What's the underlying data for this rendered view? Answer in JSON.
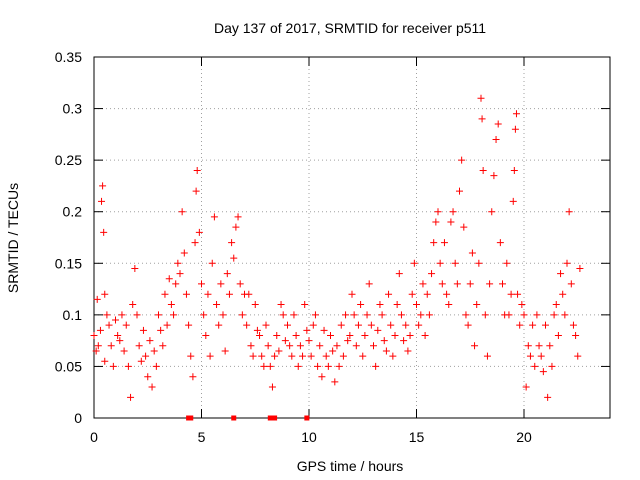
{
  "chart_data": {
    "type": "scatter",
    "title": "Day 137 of 2017, SRMTID for receiver p511",
    "xlabel": "GPS time / hours",
    "ylabel": "SRMTID / TECUs",
    "xlim": [
      0,
      24
    ],
    "ylim": [
      0,
      0.35
    ],
    "xticks": [
      0,
      5,
      10,
      15,
      20
    ],
    "yticks": [
      0,
      0.05,
      0.1,
      0.15,
      0.2,
      0.25,
      0.3,
      0.35
    ],
    "grid": true,
    "series_color": "#ff0000",
    "series": [
      {
        "name": "SRMTID",
        "marker": "+",
        "points": [
          [
            0.0,
            0.08
          ],
          [
            0.1,
            0.065
          ],
          [
            0.15,
            0.115
          ],
          [
            0.2,
            0.07
          ],
          [
            0.3,
            0.085
          ],
          [
            0.35,
            0.21
          ],
          [
            0.4,
            0.225
          ],
          [
            0.45,
            0.18
          ],
          [
            0.5,
            0.12
          ],
          [
            0.5,
            0.055
          ],
          [
            0.6,
            0.1
          ],
          [
            0.7,
            0.09
          ],
          [
            0.8,
            0.07
          ],
          [
            0.9,
            0.05
          ],
          [
            1.0,
            0.095
          ],
          [
            1.1,
            0.08
          ],
          [
            1.2,
            0.075
          ],
          [
            1.3,
            0.1
          ],
          [
            1.4,
            0.065
          ],
          [
            1.5,
            0.09
          ],
          [
            1.6,
            0.05
          ],
          [
            1.7,
            0.02
          ],
          [
            1.8,
            0.11
          ],
          [
            1.9,
            0.145
          ],
          [
            2.0,
            0.1
          ],
          [
            2.1,
            0.07
          ],
          [
            2.2,
            0.055
          ],
          [
            2.3,
            0.085
          ],
          [
            2.4,
            0.06
          ],
          [
            2.5,
            0.04
          ],
          [
            2.6,
            0.075
          ],
          [
            2.7,
            0.03
          ],
          [
            2.8,
            0.065
          ],
          [
            2.9,
            0.05
          ],
          [
            3.0,
            0.1
          ],
          [
            3.1,
            0.085
          ],
          [
            3.2,
            0.07
          ],
          [
            3.3,
            0.12
          ],
          [
            3.4,
            0.09
          ],
          [
            3.5,
            0.135
          ],
          [
            3.6,
            0.11
          ],
          [
            3.7,
            0.1
          ],
          [
            3.8,
            0.13
          ],
          [
            3.9,
            0.15
          ],
          [
            4.0,
            0.14
          ],
          [
            4.1,
            0.2
          ],
          [
            4.2,
            0.16
          ],
          [
            4.3,
            0.12
          ],
          [
            4.4,
            0.09
          ],
          [
            4.5,
            0.06
          ],
          [
            4.6,
            0.04
          ],
          [
            4.7,
            0.17
          ],
          [
            4.75,
            0.22
          ],
          [
            4.8,
            0.24
          ],
          [
            4.9,
            0.18
          ],
          [
            5.0,
            0.13
          ],
          [
            5.1,
            0.1
          ],
          [
            5.2,
            0.08
          ],
          [
            5.3,
            0.12
          ],
          [
            5.4,
            0.06
          ],
          [
            5.5,
            0.15
          ],
          [
            5.6,
            0.195
          ],
          [
            5.7,
            0.11
          ],
          [
            5.8,
            0.09
          ],
          [
            5.9,
            0.13
          ],
          [
            6.0,
            0.1
          ],
          [
            6.1,
            0.065
          ],
          [
            6.2,
            0.14
          ],
          [
            6.3,
            0.12
          ],
          [
            6.4,
            0.17
          ],
          [
            6.5,
            0.155
          ],
          [
            6.6,
            0.185
          ],
          [
            6.7,
            0.195
          ],
          [
            6.8,
            0.13
          ],
          [
            6.9,
            0.1
          ],
          [
            7.0,
            0.12
          ],
          [
            7.1,
            0.09
          ],
          [
            7.2,
            0.12
          ],
          [
            7.3,
            0.07
          ],
          [
            7.4,
            0.06
          ],
          [
            7.5,
            0.11
          ],
          [
            7.6,
            0.085
          ],
          [
            7.7,
            0.08
          ],
          [
            7.8,
            0.06
          ],
          [
            7.9,
            0.05
          ],
          [
            8.0,
            0.09
          ],
          [
            8.1,
            0.07
          ],
          [
            8.2,
            0.05
          ],
          [
            8.3,
            0.03
          ],
          [
            8.4,
            0.06
          ],
          [
            8.5,
            0.08
          ],
          [
            8.6,
            0.065
          ],
          [
            8.7,
            0.11
          ],
          [
            8.8,
            0.1
          ],
          [
            8.9,
            0.075
          ],
          [
            9.0,
            0.09
          ],
          [
            9.1,
            0.07
          ],
          [
            9.2,
            0.06
          ],
          [
            9.3,
            0.1
          ],
          [
            9.4,
            0.08
          ],
          [
            9.5,
            0.05
          ],
          [
            9.6,
            0.07
          ],
          [
            9.7,
            0.06
          ],
          [
            9.8,
            0.11
          ],
          [
            9.9,
            0.085
          ],
          [
            10.0,
            0.075
          ],
          [
            10.1,
            0.06
          ],
          [
            10.2,
            0.09
          ],
          [
            10.3,
            0.1
          ],
          [
            10.4,
            0.05
          ],
          [
            10.5,
            0.07
          ],
          [
            10.6,
            0.04
          ],
          [
            10.7,
            0.085
          ],
          [
            10.8,
            0.06
          ],
          [
            10.9,
            0.05
          ],
          [
            11.0,
            0.08
          ],
          [
            11.1,
            0.065
          ],
          [
            11.2,
            0.035
          ],
          [
            11.3,
            0.07
          ],
          [
            11.4,
            0.05
          ],
          [
            11.5,
            0.09
          ],
          [
            11.6,
            0.06
          ],
          [
            11.7,
            0.1
          ],
          [
            11.8,
            0.075
          ],
          [
            11.9,
            0.08
          ],
          [
            12.0,
            0.12
          ],
          [
            12.1,
            0.1
          ],
          [
            12.2,
            0.07
          ],
          [
            12.3,
            0.09
          ],
          [
            12.4,
            0.11
          ],
          [
            12.5,
            0.06
          ],
          [
            12.6,
            0.08
          ],
          [
            12.7,
            0.1
          ],
          [
            12.8,
            0.13
          ],
          [
            12.9,
            0.09
          ],
          [
            13.0,
            0.07
          ],
          [
            13.1,
            0.05
          ],
          [
            13.2,
            0.085
          ],
          [
            13.3,
            0.11
          ],
          [
            13.4,
            0.1
          ],
          [
            13.5,
            0.075
          ],
          [
            13.6,
            0.065
          ],
          [
            13.7,
            0.12
          ],
          [
            13.8,
            0.09
          ],
          [
            13.9,
            0.06
          ],
          [
            14.0,
            0.08
          ],
          [
            14.1,
            0.11
          ],
          [
            14.2,
            0.14
          ],
          [
            14.3,
            0.1
          ],
          [
            14.4,
            0.075
          ],
          [
            14.5,
            0.09
          ],
          [
            14.6,
            0.065
          ],
          [
            14.7,
            0.08
          ],
          [
            14.8,
            0.12
          ],
          [
            14.9,
            0.15
          ],
          [
            15.0,
            0.11
          ],
          [
            15.1,
            0.09
          ],
          [
            15.2,
            0.1
          ],
          [
            15.3,
            0.13
          ],
          [
            15.4,
            0.08
          ],
          [
            15.5,
            0.12
          ],
          [
            15.6,
            0.1
          ],
          [
            15.7,
            0.14
          ],
          [
            15.8,
            0.17
          ],
          [
            15.9,
            0.19
          ],
          [
            16.0,
            0.2
          ],
          [
            16.1,
            0.15
          ],
          [
            16.2,
            0.13
          ],
          [
            16.3,
            0.17
          ],
          [
            16.4,
            0.12
          ],
          [
            16.5,
            0.11
          ],
          [
            16.6,
            0.19
          ],
          [
            16.7,
            0.2
          ],
          [
            16.8,
            0.15
          ],
          [
            16.9,
            0.13
          ],
          [
            17.0,
            0.22
          ],
          [
            17.1,
            0.25
          ],
          [
            17.2,
            0.185
          ],
          [
            17.3,
            0.1
          ],
          [
            17.4,
            0.09
          ],
          [
            17.5,
            0.13
          ],
          [
            17.6,
            0.16
          ],
          [
            17.7,
            0.07
          ],
          [
            17.8,
            0.11
          ],
          [
            17.9,
            0.15
          ],
          [
            18.0,
            0.31
          ],
          [
            18.05,
            0.29
          ],
          [
            18.1,
            0.24
          ],
          [
            18.2,
            0.1
          ],
          [
            18.3,
            0.06
          ],
          [
            18.4,
            0.13
          ],
          [
            18.5,
            0.2
          ],
          [
            18.6,
            0.235
          ],
          [
            18.7,
            0.27
          ],
          [
            18.8,
            0.285
          ],
          [
            18.9,
            0.17
          ],
          [
            19.0,
            0.13
          ],
          [
            19.1,
            0.1
          ],
          [
            19.2,
            0.15
          ],
          [
            19.3,
            0.1
          ],
          [
            19.4,
            0.12
          ],
          [
            19.5,
            0.21
          ],
          [
            19.55,
            0.24
          ],
          [
            19.6,
            0.28
          ],
          [
            19.65,
            0.295
          ],
          [
            19.7,
            0.12
          ],
          [
            19.8,
            0.09
          ],
          [
            19.9,
            0.11
          ],
          [
            20.0,
            0.1
          ],
          [
            20.1,
            0.03
          ],
          [
            20.2,
            0.07
          ],
          [
            20.3,
            0.06
          ],
          [
            20.4,
            0.09
          ],
          [
            20.5,
            0.05
          ],
          [
            20.6,
            0.1
          ],
          [
            20.7,
            0.07
          ],
          [
            20.8,
            0.06
          ],
          [
            20.9,
            0.045
          ],
          [
            21.0,
            0.09
          ],
          [
            21.1,
            0.02
          ],
          [
            21.2,
            0.07
          ],
          [
            21.3,
            0.05
          ],
          [
            21.4,
            0.1
          ],
          [
            21.5,
            0.11
          ],
          [
            21.6,
            0.08
          ],
          [
            21.7,
            0.14
          ],
          [
            21.8,
            0.12
          ],
          [
            21.9,
            0.1
          ],
          [
            22.0,
            0.15
          ],
          [
            22.1,
            0.2
          ],
          [
            22.2,
            0.13
          ],
          [
            22.3,
            0.09
          ],
          [
            22.4,
            0.08
          ],
          [
            22.5,
            0.06
          ],
          [
            22.6,
            0.145
          ]
        ]
      }
    ],
    "axis_markers": {
      "marker": "square",
      "color": "#ff0000",
      "x_values": [
        4.4,
        4.5,
        6.5,
        8.2,
        8.4,
        9.9
      ]
    }
  }
}
